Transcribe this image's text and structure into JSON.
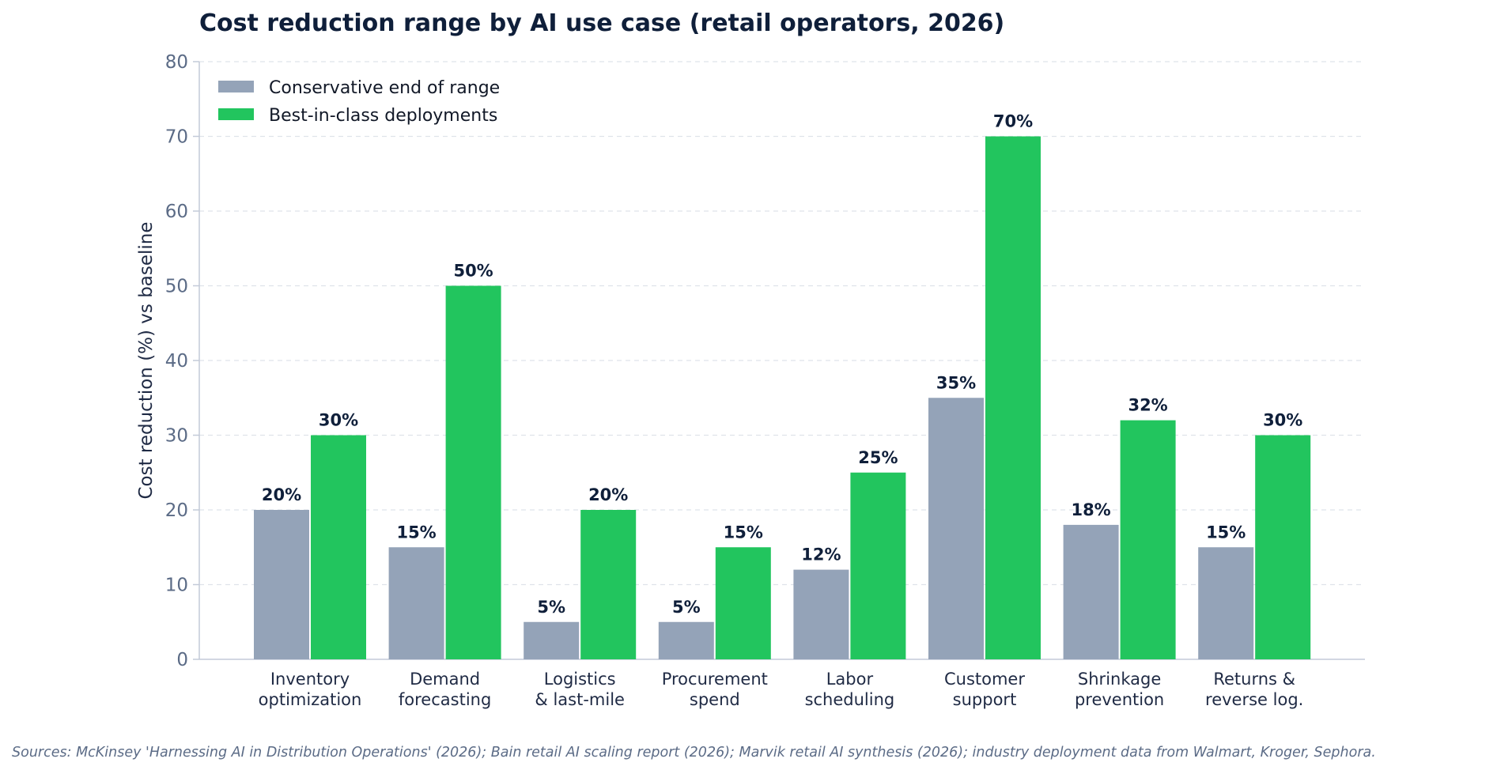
{
  "chart_data": {
    "type": "bar",
    "title": "Cost reduction range by AI use case (retail operators, 2026)",
    "xlabel": "",
    "ylabel": "Cost reduction (%) vs baseline",
    "ylim": [
      0,
      80
    ],
    "yticks": [
      "0",
      "10",
      "20",
      "30",
      "40",
      "50",
      "60",
      "70",
      "80"
    ],
    "grid": "horizontal dashed",
    "legend_position": "top-left",
    "categories": [
      [
        "Inventory",
        "optimization"
      ],
      [
        "Demand",
        "forecasting"
      ],
      [
        "Logistics",
        "& last-mile"
      ],
      [
        "Procurement",
        "spend"
      ],
      [
        "Labor",
        "scheduling"
      ],
      [
        "Customer",
        "support"
      ],
      [
        "Shrinkage",
        "prevention"
      ],
      [
        "Returns &",
        "reverse log."
      ]
    ],
    "series": [
      {
        "name": "Conservative end of range",
        "color": "#94a3b8",
        "values": [
          20,
          15,
          5,
          5,
          12,
          35,
          18,
          15
        ],
        "labels": [
          "20%",
          "15%",
          "5%",
          "5%",
          "12%",
          "35%",
          "18%",
          "15%"
        ]
      },
      {
        "name": "Best-in-class deployments",
        "color": "#22c55e",
        "values": [
          30,
          50,
          20,
          15,
          25,
          70,
          32,
          30
        ],
        "labels": [
          "30%",
          "50%",
          "20%",
          "15%",
          "25%",
          "70%",
          "32%",
          "30%"
        ]
      }
    ],
    "source": "Sources: McKinsey 'Harnessing AI in Distribution Operations' (2026); Bain retail AI scaling report (2026); Marvik retail AI synthesis (2026); industry deployment data from Walmart, Kroger, Sephora."
  }
}
